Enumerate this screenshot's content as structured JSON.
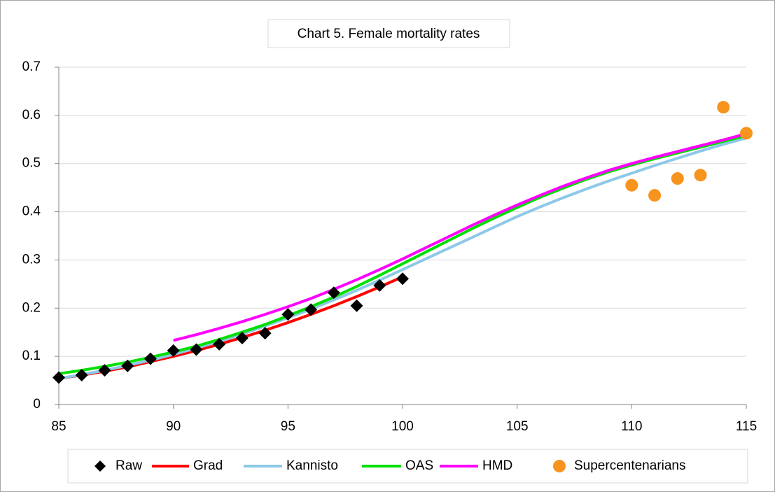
{
  "chart_data": {
    "type": "line",
    "title": "Chart 5. Female mortality rates",
    "xlim": [
      85,
      115
    ],
    "xticks": [
      85,
      90,
      95,
      100,
      105,
      110,
      115
    ],
    "ylim": [
      0,
      0.7
    ],
    "yticks": [
      0,
      0.1,
      0.2,
      0.3,
      0.4,
      0.5,
      0.6,
      0.7
    ],
    "grid": true,
    "legend": "bottom",
    "series": [
      {
        "name": "Raw",
        "color": "#000000",
        "marker": "diamond",
        "x": [
          85,
          86,
          87,
          88,
          89,
          90,
          91,
          92,
          93,
          94,
          95,
          96,
          97,
          98,
          99,
          100
        ],
        "values": [
          0.056,
          0.061,
          0.071,
          0.08,
          0.095,
          0.112,
          0.114,
          0.125,
          0.138,
          0.148,
          0.187,
          0.197,
          0.232,
          0.205,
          0.247,
          0.261
        ]
      },
      {
        "name": "Grad",
        "color": "#ff0000",
        "x": [
          85,
          86,
          87,
          88,
          89,
          90,
          91,
          92,
          93,
          94,
          95,
          96,
          97,
          98,
          99,
          100
        ],
        "values": [
          0.054,
          0.061,
          0.069,
          0.078,
          0.089,
          0.1,
          0.112,
          0.125,
          0.139,
          0.154,
          0.17,
          0.187,
          0.205,
          0.224,
          0.244,
          0.265
        ]
      },
      {
        "name": "Kannisto",
        "color": "#8dc8e8",
        "x": [
          85,
          86,
          87,
          88,
          89,
          90,
          91,
          92,
          93,
          94,
          95,
          96,
          97,
          98,
          99,
          100,
          101,
          102,
          103,
          104,
          105,
          106,
          107,
          108,
          109,
          110,
          111,
          112,
          113,
          114,
          115
        ],
        "values": [
          0.054,
          0.062,
          0.071,
          0.081,
          0.092,
          0.104,
          0.117,
          0.131,
          0.146,
          0.163,
          0.18,
          0.198,
          0.217,
          0.237,
          0.258,
          0.28,
          0.302,
          0.324,
          0.346,
          0.368,
          0.39,
          0.41,
          0.429,
          0.447,
          0.464,
          0.48,
          0.496,
          0.511,
          0.526,
          0.54,
          0.553
        ]
      },
      {
        "name": "OAS",
        "color": "#00e000",
        "x": [
          85,
          86,
          87,
          88,
          89,
          90,
          91,
          92,
          93,
          94,
          95,
          96,
          97,
          98,
          99,
          100,
          101,
          102,
          103,
          104,
          105,
          106,
          107,
          108,
          109,
          110,
          111,
          112,
          113,
          114,
          115
        ],
        "values": [
          0.064,
          0.071,
          0.079,
          0.088,
          0.098,
          0.109,
          0.121,
          0.135,
          0.15,
          0.166,
          0.184,
          0.203,
          0.223,
          0.245,
          0.268,
          0.292,
          0.316,
          0.34,
          0.364,
          0.387,
          0.409,
          0.43,
          0.449,
          0.467,
          0.483,
          0.497,
          0.51,
          0.522,
          0.534,
          0.546,
          0.558
        ]
      },
      {
        "name": "HMD",
        "color": "#ff00ff",
        "x": [
          90,
          91,
          92,
          93,
          94,
          95,
          96,
          97,
          98,
          99,
          100,
          101,
          102,
          103,
          104,
          105,
          106,
          107,
          108,
          109,
          110,
          111,
          112,
          113,
          114,
          115
        ],
        "values": [
          0.133,
          0.145,
          0.158,
          0.172,
          0.187,
          0.203,
          0.22,
          0.239,
          0.259,
          0.28,
          0.302,
          0.325,
          0.348,
          0.371,
          0.393,
          0.414,
          0.434,
          0.453,
          0.47,
          0.486,
          0.5,
          0.513,
          0.525,
          0.537,
          0.549,
          0.562
        ]
      },
      {
        "name": "Supercentenarians",
        "color": "#f7941d",
        "marker": "circle",
        "x": [
          110,
          111,
          112,
          113,
          114,
          115
        ],
        "values": [
          0.455,
          0.434,
          0.469,
          0.476,
          0.617,
          0.563
        ]
      }
    ]
  }
}
